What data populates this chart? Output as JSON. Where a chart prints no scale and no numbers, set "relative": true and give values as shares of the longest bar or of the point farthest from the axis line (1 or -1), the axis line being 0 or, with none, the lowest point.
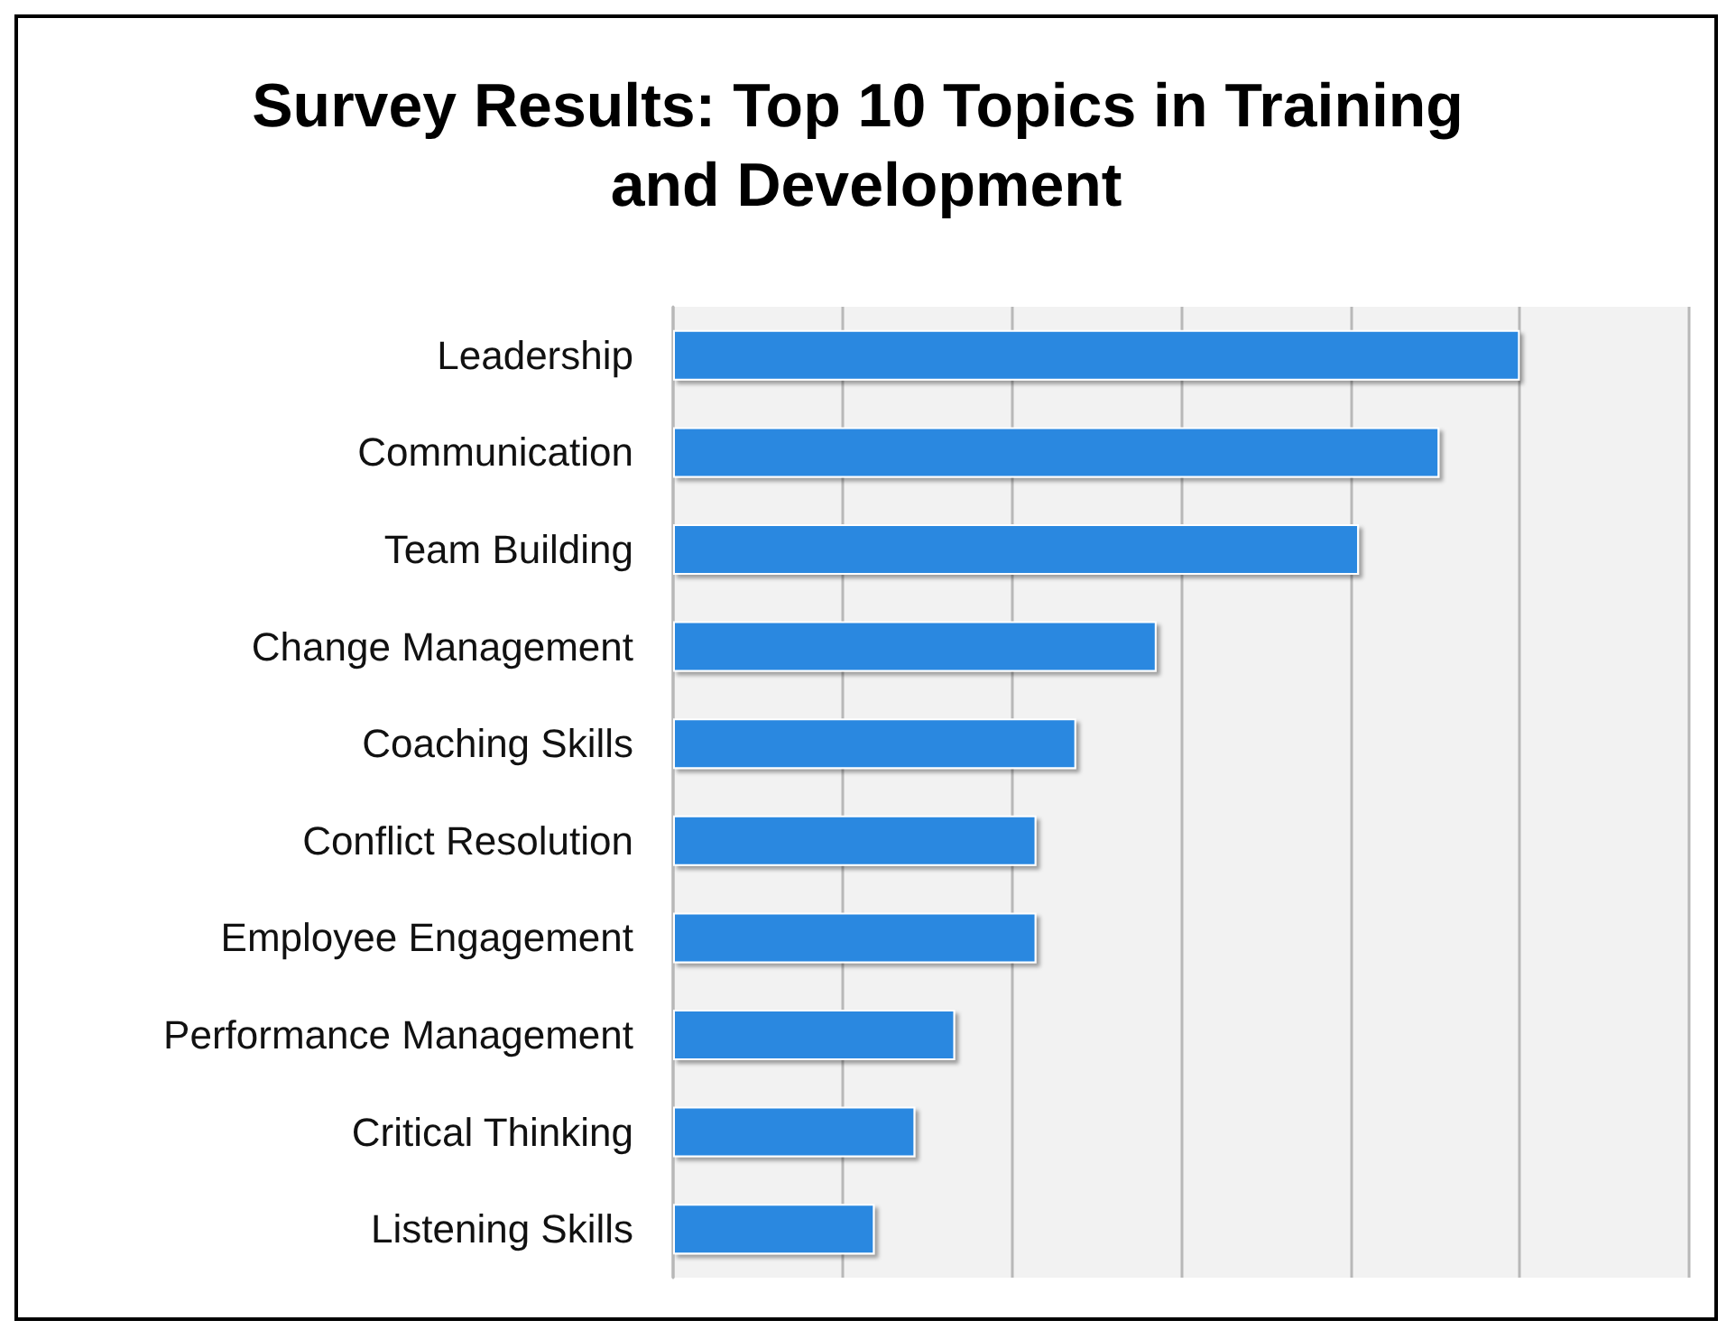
{
  "chart_data": {
    "type": "bar",
    "orientation": "horizontal",
    "relative": true,
    "title": "Survey Results: Top 10 Topics in Training and Development",
    "categories": [
      "Leadership",
      "Communication",
      "Team Building",
      "Change Management",
      "Coaching Skills",
      "Conflict Resolution",
      "Employee Engagement",
      "Performance Management",
      "Critical Thinking",
      "Listening Skills"
    ],
    "values": [
      1,
      0.905,
      0.81,
      0.571,
      0.476,
      0.429,
      0.429,
      0.333,
      0.286,
      0.238
    ],
    "color": "#2a88e0",
    "grid": "x"
  }
}
